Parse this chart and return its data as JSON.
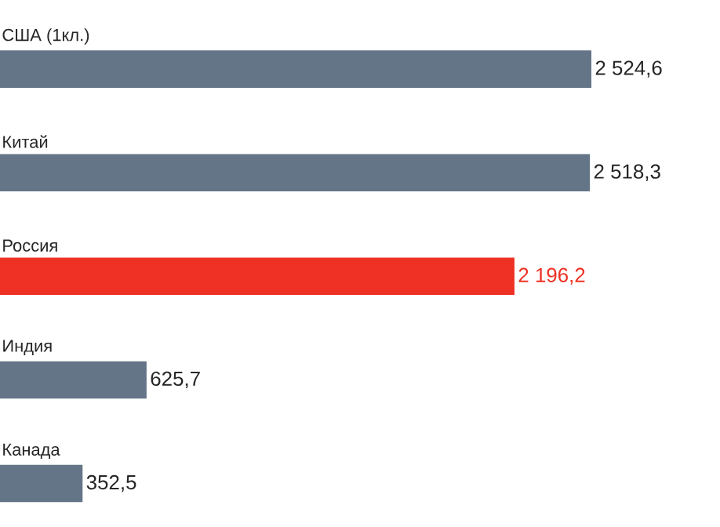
{
  "chart_data": {
    "type": "bar",
    "orientation": "horizontal",
    "categories": [
      "США (1кл.)",
      "Китай",
      "Россия",
      "Индия",
      "Канада"
    ],
    "values": [
      2524.6,
      2518.3,
      2196.2,
      625.7,
      352.5
    ],
    "value_labels": [
      "2 524,6",
      "2 518,3",
      "2 196,2",
      "625,7",
      "352,5"
    ],
    "colors": [
      "#647587",
      "#647587",
      "#ee3124",
      "#647587",
      "#647587"
    ]
  }
}
